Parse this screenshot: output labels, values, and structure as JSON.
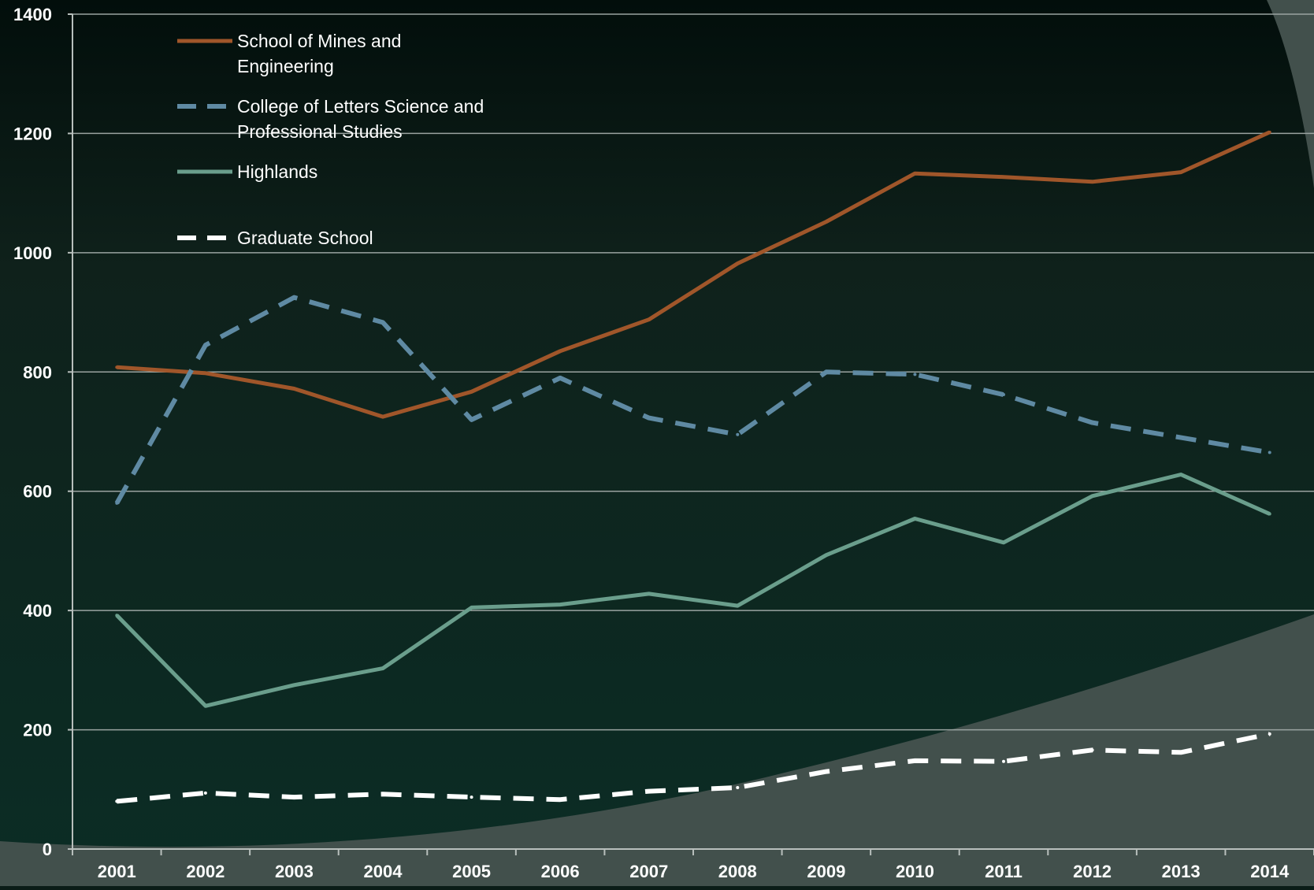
{
  "chart_data": {
    "type": "line",
    "title": "",
    "xlabel": "",
    "ylabel": "",
    "categories": [
      "2001",
      "2002",
      "2003",
      "2004",
      "2005",
      "2006",
      "2007",
      "2008",
      "2009",
      "2010",
      "2011",
      "2012",
      "2013",
      "2014"
    ],
    "ylim": [
      0,
      1400
    ],
    "yticks": [
      "0",
      "200",
      "400",
      "600",
      "800",
      "1000",
      "1200",
      "1400"
    ],
    "grid": true,
    "legend_position": "top-left",
    "series": [
      {
        "name": "School of Mines and Engineering",
        "legend_lines": [
          "School of Mines and",
          "Engineering"
        ],
        "color": "#a0562a",
        "dash": "solid",
        "values": [
          808,
          798,
          772,
          725,
          767,
          835,
          888,
          982,
          1052,
          1133,
          1127,
          1119,
          1135,
          1202
        ]
      },
      {
        "name": "College of Letters Science and Professional Studies",
        "legend_lines": [
          "College of Letters Science and",
          "Professional Studies"
        ],
        "color": "#5f8aa3",
        "dash": "dashed",
        "values": [
          580,
          845,
          925,
          883,
          720,
          790,
          723,
          695,
          800,
          796,
          762,
          715,
          690,
          665
        ]
      },
      {
        "name": "Highlands",
        "legend_lines": [
          "Highlands"
        ],
        "color": "#6a9e8c",
        "dash": "solid",
        "values": [
          392,
          240,
          275,
          303,
          405,
          410,
          428,
          408,
          493,
          554,
          514,
          592,
          628,
          562
        ]
      },
      {
        "name": "Graduate School",
        "legend_lines": [
          "Graduate School"
        ],
        "color": "#ffffff",
        "dash": "dashed",
        "values": [
          80,
          94,
          87,
          92,
          87,
          83,
          97,
          103,
          130,
          148,
          147,
          166,
          162,
          193
        ]
      }
    ]
  }
}
